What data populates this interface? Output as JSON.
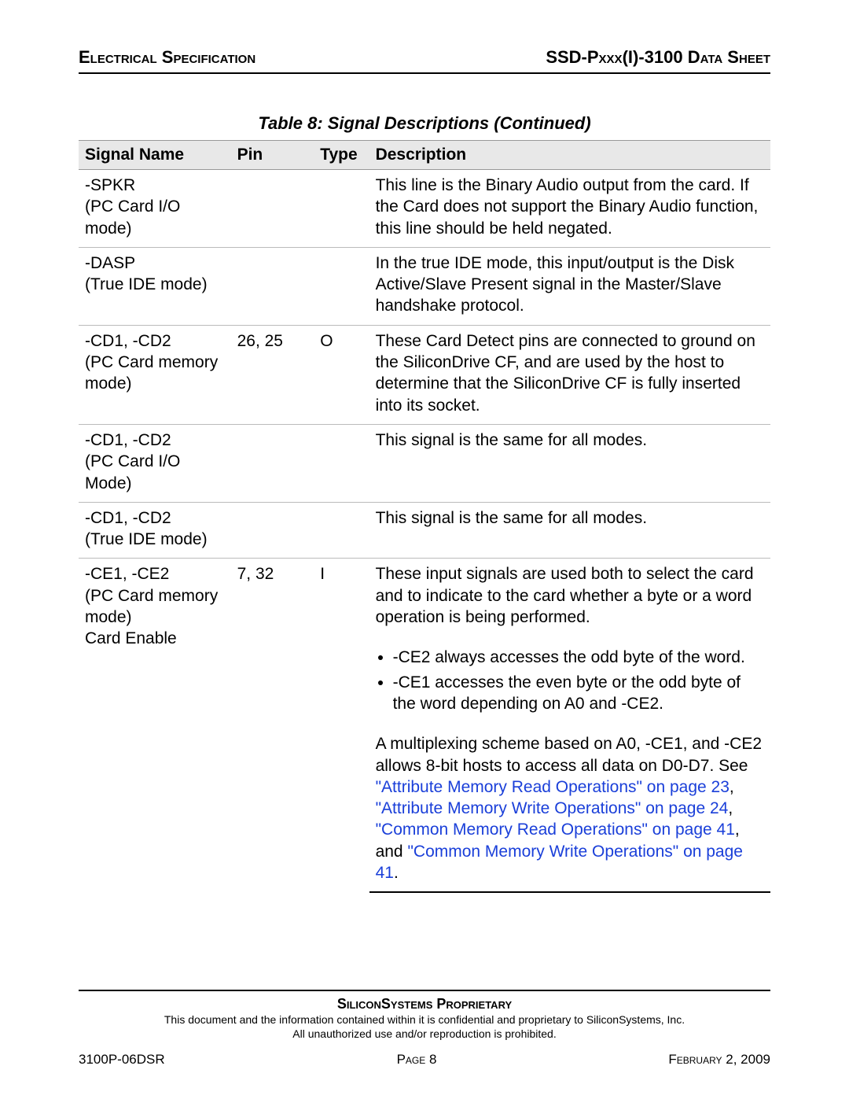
{
  "header": {
    "left": "Electrical Specification",
    "right": "SSD-Pxxx(I)-3100 Data Sheet"
  },
  "table": {
    "caption": "Table 8:  Signal Descriptions  (Continued)",
    "columns": [
      "Signal Name",
      "Pin",
      "Type",
      "Description"
    ],
    "col_widths_pct": [
      22,
      12,
      8,
      58
    ],
    "header_bg": "#e8e8e8",
    "border_color": "#bbbbbb",
    "font_size_pt": 16
  },
  "rows": [
    {
      "signal_main": "-SPKR",
      "signal_sub": "(PC Card I/O mode)",
      "pin": "",
      "type": "",
      "desc": "This line is the Binary Audio output from the card. If the Card does not support the Binary Audio function, this line should be held negated."
    },
    {
      "signal_main": "-DASP",
      "signal_sub": "(True IDE mode)",
      "pin": "",
      "type": "",
      "desc": "In the true IDE mode, this input/output is the Disk Active/Slave Present signal in the Master/Slave handshake protocol."
    },
    {
      "signal_main": "-CD1, -CD2",
      "signal_sub": "(PC Card memory mode)",
      "pin": "26, 25",
      "type": "O",
      "desc": "These Card Detect pins are connected to ground on the SiliconDrive CF, and are used by the host to determine that the SiliconDrive CF is fully inserted into its socket."
    },
    {
      "signal_main": "-CD1, -CD2",
      "signal_sub": "(PC Card I/O Mode)",
      "pin": "",
      "type": "",
      "desc": "This signal is the same for all modes."
    },
    {
      "signal_main": "-CD1, -CD2",
      "signal_sub": "(True IDE mode)",
      "pin": "",
      "type": "",
      "desc": "This signal is the same for all modes."
    }
  ],
  "row_ce": {
    "signal_main": "-CE1, -CE2",
    "signal_sub1": "(PC Card memory mode)",
    "signal_sub2": "Card Enable",
    "pin": "7, 32",
    "type": "I",
    "desc_intro": "These input signals are used both to select the card and to indicate to the card whether a byte or a word operation is being performed.",
    "bullet1": "-CE2 always accesses the odd byte of the word.",
    "bullet2": "-CE1 accesses the even byte or the odd byte of the word depending on A0 and -CE2.",
    "desc_after_pre": "A multiplexing scheme based on A0, -CE1, and -CE2 allows 8-bit hosts to access all data on D0-D7. See ",
    "link1": "\"Attribute Memory Read Operations\" on page 23",
    "sep1": ", ",
    "link2": "\"Attribute Memory Write Operations\" on page 24",
    "sep2": ", ",
    "link3": "\"Common Memory Read Operations\" on page 41",
    "sep3": ", and ",
    "link4": "\"Common Memory Write Operations\" on page 41",
    "desc_after_post": "."
  },
  "footer": {
    "proprietary": "SiliconSystems Proprietary",
    "disclaimer1": "This document and the information contained within it is confidential and proprietary to SiliconSystems, Inc.",
    "disclaimer2": "All unauthorized use and/or reproduction is prohibited.",
    "doc_id": "3100P-06DSR",
    "page": "Page 8",
    "date": "February 2, 2009"
  },
  "colors": {
    "link": "#1a3fd9",
    "text": "#000000",
    "header_bg": "#e8e8e8"
  }
}
